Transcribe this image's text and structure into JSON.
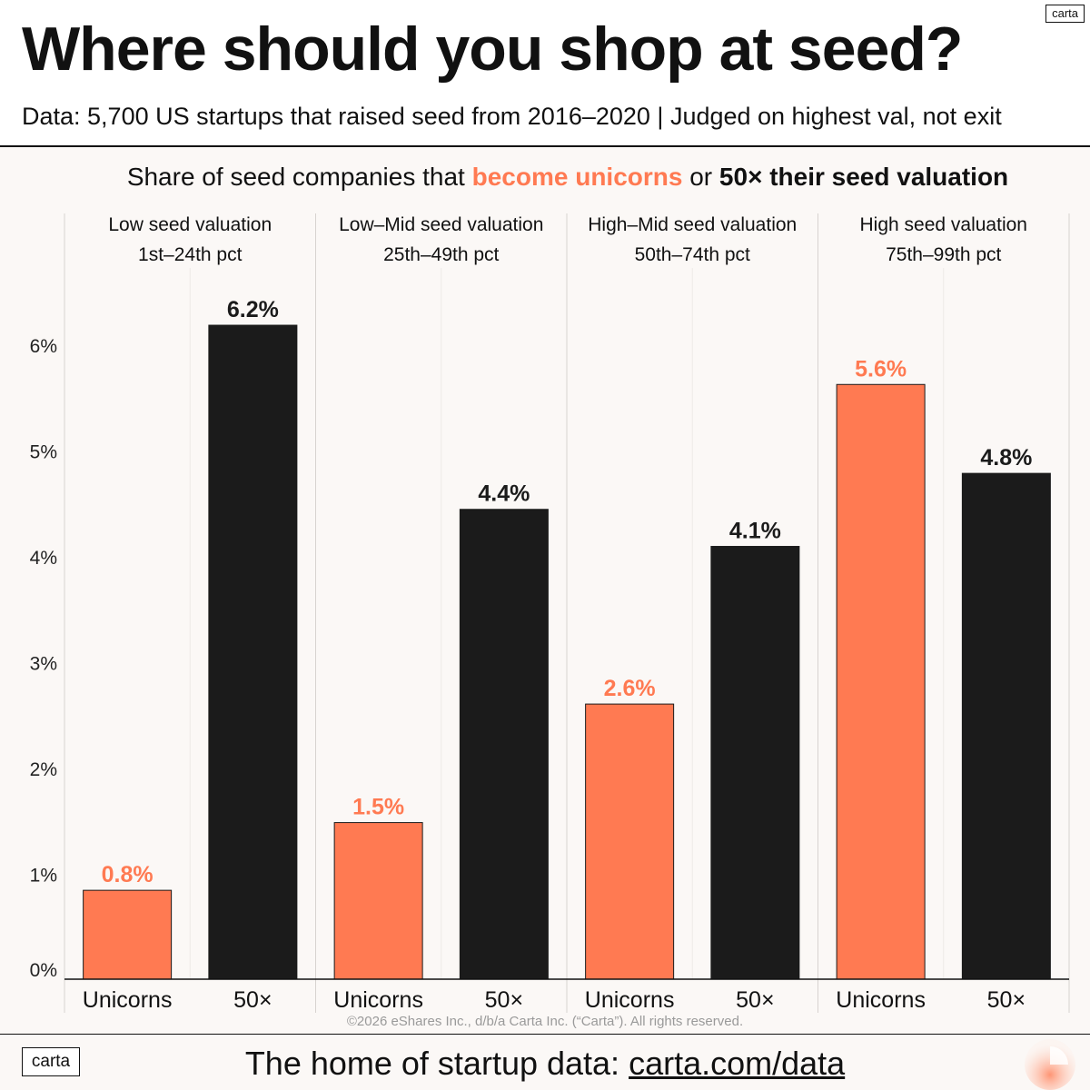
{
  "header": {
    "title": "Where should you shop at seed?",
    "subtitle": "Data: 5,700 US startups that raised seed from 2016–2020 | Judged on highest val, not exit",
    "brand_badge": "carta"
  },
  "chart_heading": {
    "prefix": "Share of seed companies that ",
    "highlight_orange": "become unicorns",
    "middle": " or ",
    "highlight_dark": "50× their seed valuation"
  },
  "chart_data": {
    "type": "bar",
    "title": "Share of seed companies that become unicorns or 50× their seed valuation",
    "ylim": [
      0,
      7
    ],
    "yticks": [
      {
        "value": 0,
        "label": "0%"
      },
      {
        "value": 1,
        "label": "1%"
      },
      {
        "value": 2,
        "label": "2%"
      },
      {
        "value": 3,
        "label": "3%"
      },
      {
        "value": 4,
        "label": "4%"
      },
      {
        "value": 5,
        "label": "5%"
      },
      {
        "value": 6,
        "label": "6%"
      }
    ],
    "colors": {
      "unicorns": "#ff7a52",
      "fifty_x": "#1b1b1b"
    },
    "groups": [
      {
        "name": "Low seed valuation",
        "range": "1st–24th pct",
        "bars": [
          {
            "label": "Unicorns",
            "series": "unicorns",
            "value": 0.84,
            "value_label": "0.8%"
          },
          {
            "label": "50×",
            "series": "fifty_x",
            "value": 6.18,
            "value_label": "6.2%"
          }
        ]
      },
      {
        "name": "Low–Mid seed valuation",
        "range": "25th–49th pct",
        "bars": [
          {
            "label": "Unicorns",
            "series": "unicorns",
            "value": 1.48,
            "value_label": "1.5%"
          },
          {
            "label": "50×",
            "series": "fifty_x",
            "value": 4.44,
            "value_label": "4.4%"
          }
        ]
      },
      {
        "name": "High–Mid seed valuation",
        "range": "50th–74th pct",
        "bars": [
          {
            "label": "Unicorns",
            "series": "unicorns",
            "value": 2.6,
            "value_label": "2.6%"
          },
          {
            "label": "50×",
            "series": "fifty_x",
            "value": 4.09,
            "value_label": "4.1%"
          }
        ]
      },
      {
        "name": "High seed valuation",
        "range": "75th–99th pct",
        "bars": [
          {
            "label": "Unicorns",
            "series": "unicorns",
            "value": 5.62,
            "value_label": "5.6%"
          },
          {
            "label": "50×",
            "series": "fifty_x",
            "value": 4.78,
            "value_label": "4.8%"
          }
        ]
      }
    ]
  },
  "footer": {
    "copyright": "©2026 eShares Inc., d/b/a Carta Inc. (“Carta”). All rights reserved.",
    "logo": "carta",
    "tagline_prefix": "The home of startup data: ",
    "tagline_link": "carta.com/data"
  }
}
